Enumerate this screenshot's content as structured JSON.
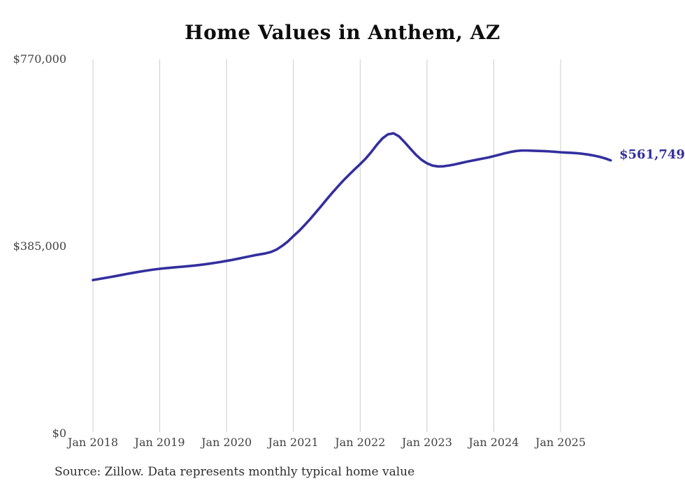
{
  "chart": {
    "title": "Home Values in Anthem, AZ",
    "end_label": "$561,749",
    "line_color": "#332f9e",
    "grid_color": "#cccccc",
    "tick_text_color": "#414141"
  },
  "footer": {
    "source": "Source: Zillow. Data represents monthly typical home value"
  },
  "chart_data": {
    "type": "line",
    "title": "Home Values in Anthem, AZ",
    "xlabel": "",
    "ylabel": "",
    "x_ticks": [
      "Jan 2018",
      "Jan 2019",
      "Jan 2020",
      "Jan 2021",
      "Jan 2022",
      "Jan 2023",
      "Jan 2024",
      "Jan 2025"
    ],
    "y_ticks": [
      {
        "label": "$0",
        "value": 0
      },
      {
        "label": "$385,000",
        "value": 385000
      },
      {
        "label": "$770,000",
        "value": 770000
      }
    ],
    "ylim": [
      0,
      770000
    ],
    "grid": "vertical-only",
    "legend": "none",
    "unit": "USD",
    "annotations": [
      {
        "text": "$561,749",
        "position": "line-end"
      }
    ],
    "series": [
      {
        "name": "Monthly typical home value",
        "start": "2018-01",
        "end": "2025-10",
        "frequency": "monthly",
        "final_value": 561749,
        "values": [
          315000,
          317000,
          319000,
          321000,
          323000,
          325200,
          327400,
          329500,
          331500,
          333400,
          335200,
          336800,
          338200,
          339400,
          340500,
          341500,
          342500,
          343500,
          344600,
          345900,
          347300,
          348900,
          350600,
          352400,
          354500,
          356500,
          358800,
          361200,
          363600,
          366000,
          368000,
          370000,
          373000,
          378000,
          385500,
          394500,
          405500,
          416000,
          428000,
          440500,
          454000,
          467500,
          481500,
          495000,
          508000,
          520500,
          532000,
          543200,
          554000,
          565500,
          579000,
          594000,
          607000,
          615500,
          617500,
          611000,
          599000,
          586000,
          573500,
          563000,
          555600,
          551000,
          549200,
          549600,
          551200,
          553400,
          556000,
          558600,
          561000,
          563200,
          565400,
          567600,
          570400,
          573400,
          576400,
          579000,
          581000,
          582000,
          582000,
          581600,
          581200,
          580800,
          580200,
          579400,
          578400,
          577800,
          577200,
          576400,
          575200,
          573600,
          571600,
          569000,
          565800,
          561749
        ]
      }
    ]
  }
}
